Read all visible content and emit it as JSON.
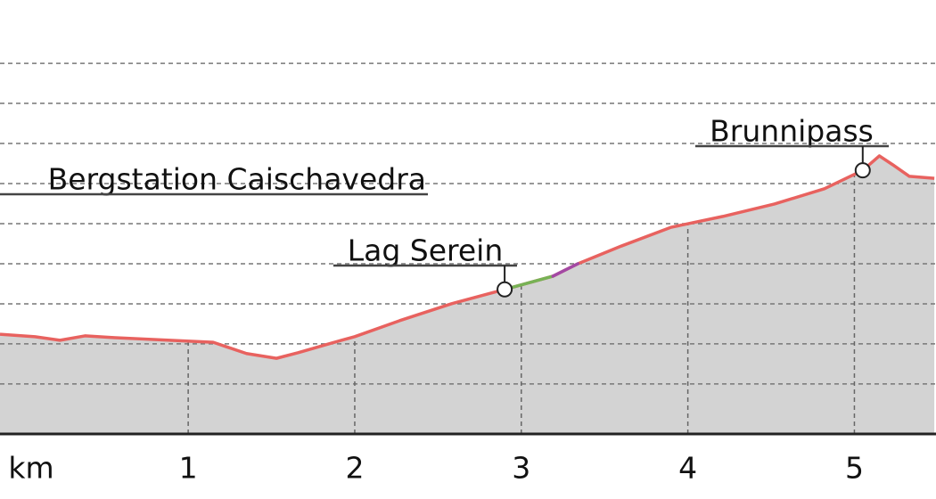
{
  "chart_data": {
    "type": "area",
    "x_label": "km",
    "x": [
      -0.13,
      0.08,
      0.23,
      0.38,
      0.54,
      0.99,
      1.15,
      1.35,
      1.53,
      1.66,
      1.86,
      2.0,
      2.27,
      2.58,
      2.9,
      3.19,
      3.34,
      3.6,
      3.9,
      4.21,
      4.52,
      4.82,
      5.05,
      5.15,
      5.23,
      5.33,
      5.48
    ],
    "series": [
      {
        "color": "#e8625f",
        "values": [
          2324,
          2318,
          2309,
          2320,
          2316,
          2307,
          2304,
          2276,
          2264,
          2278,
          2302,
          2318,
          2358,
          2400,
          2436,
          2469,
          2500,
          2544,
          2591,
          2618,
          2649,
          2687,
          2733,
          2769,
          2747,
          2718,
          2713
        ],
        "segment_colors": [
          "#e8625f",
          "#e8625f",
          "#e8625f",
          "#e8625f",
          "#e8625f",
          "#e8625f",
          "#e8625f",
          "#e8625f",
          "#e8625f",
          "#e8625f",
          "#e8625f",
          "#e8625f",
          "#e8625f",
          "#e8625f",
          "#77b255",
          "#a349a4",
          "#e8625f",
          "#e8625f",
          "#e8625f",
          "#e8625f",
          "#e8625f",
          "#e8625f",
          "#e8625f",
          "#e8625f",
          "#e8625f",
          "#e8625f"
        ]
      }
    ],
    "fill_color": "#d3d3d3",
    "xlim": [
      -0.13,
      5.49
    ],
    "ylim": [
      1913,
      3158
    ],
    "xticks": [
      1,
      2,
      3,
      4,
      5
    ],
    "yticks": [
      2200,
      2300,
      2400,
      2500,
      2600,
      2700,
      2800,
      2900,
      3000
    ],
    "grid": true,
    "annotations": [
      {
        "text": "Bergstation Caischavedra"
      },
      {
        "text": "Lag Serein",
        "x": 2.9,
        "y": 2436
      },
      {
        "text": "Brunnipass",
        "x": 5.05,
        "y": 2733
      }
    ]
  }
}
